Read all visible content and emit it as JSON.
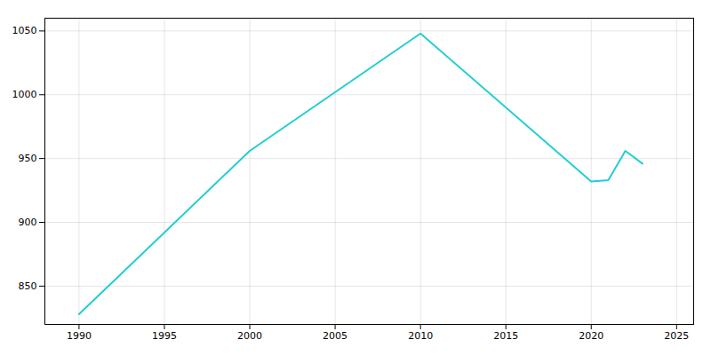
{
  "chart_data": {
    "type": "line",
    "x": [
      1990,
      2000,
      2010,
      2020,
      2021,
      2022,
      2023
    ],
    "values": [
      828,
      956,
      1048,
      932,
      933,
      956,
      946
    ],
    "color": "#22CED1",
    "xlim": [
      1988,
      2026
    ],
    "ylim": [
      820,
      1060
    ],
    "xticks": [
      1990,
      1995,
      2000,
      2005,
      2010,
      2015,
      2020,
      2025
    ],
    "yticks": [
      850,
      900,
      950,
      1000,
      1050
    ],
    "grid": true
  }
}
